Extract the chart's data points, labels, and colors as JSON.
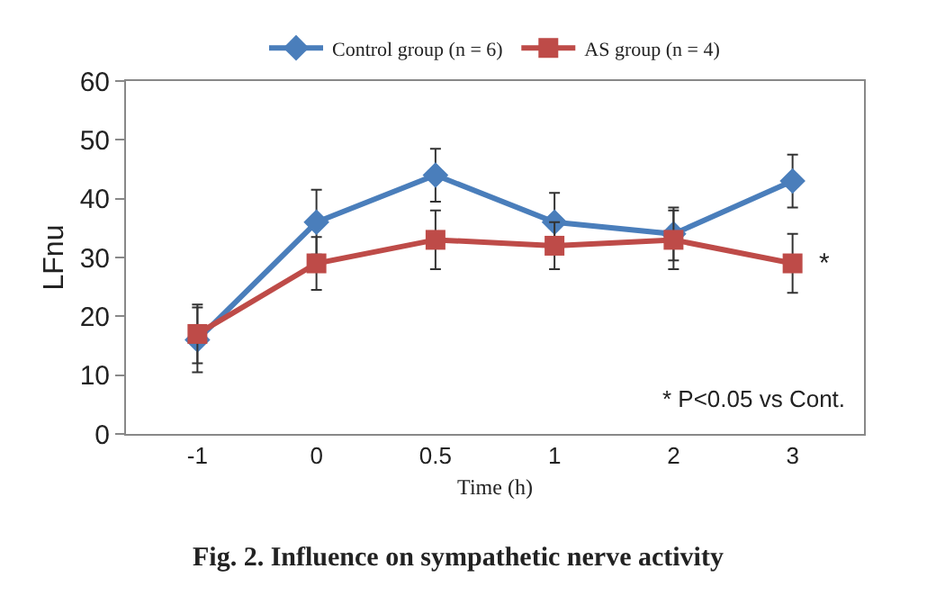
{
  "chart_data": {
    "type": "line",
    "title": "Fig. 2. Influence on sympathetic nerve activity",
    "xlabel": "Time (h)",
    "ylabel": "LFnu",
    "categories": [
      "-1",
      "0",
      "0.5",
      "1",
      "2",
      "3"
    ],
    "series": [
      {
        "name": "Control group (n = 6)",
        "color": "#4a7ebb",
        "marker": "diamond",
        "values": [
          16,
          36,
          44,
          36,
          34,
          43
        ],
        "errors": [
          5.5,
          5.5,
          4.5,
          5,
          4.5,
          4.5
        ]
      },
      {
        "name": "AS group (n = 4)",
        "color": "#be4b48",
        "marker": "square",
        "values": [
          17,
          29,
          33,
          32,
          33,
          29
        ],
        "errors": [
          5,
          4.5,
          5,
          4,
          5,
          5
        ]
      }
    ],
    "ylim": [
      0,
      60
    ],
    "yticks": [
      0,
      10,
      20,
      30,
      40,
      50,
      60
    ],
    "legend": "top",
    "annotations": [
      {
        "text": "*",
        "x": "3",
        "y": 29
      },
      "* P<0.05 vs Cont."
    ]
  }
}
